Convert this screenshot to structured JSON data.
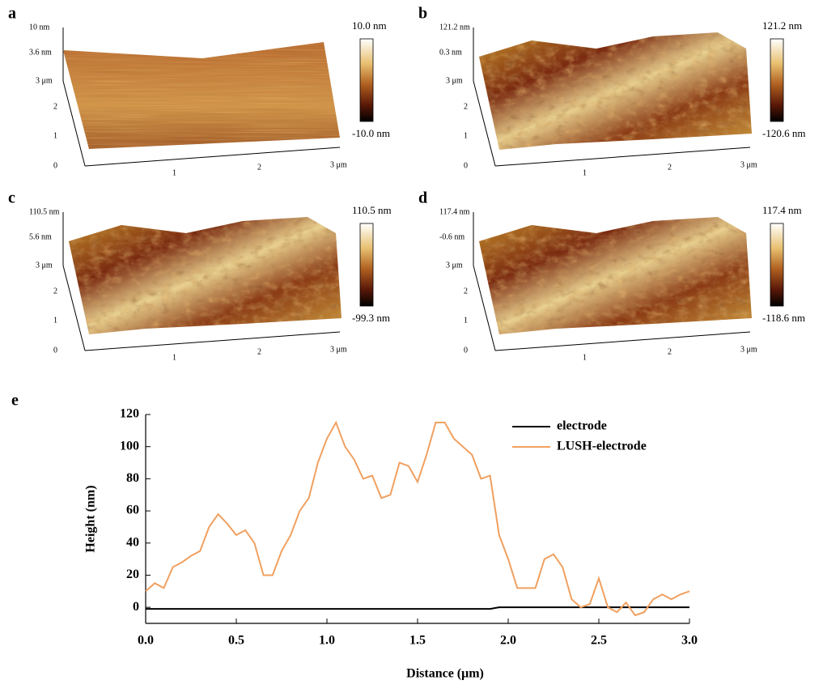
{
  "panels": [
    {
      "label": "a",
      "z_top": "10 nm",
      "z_mid": "3.6 nm",
      "y_labels": [
        "3 μm",
        "2",
        "1",
        "0"
      ],
      "x_labels": [
        "1",
        "2",
        "3 μm"
      ],
      "bar_top": "10.0 nm",
      "bar_bottom": "-10.0 nm"
    },
    {
      "label": "b",
      "z_top": "121.2 nm",
      "z_mid": "0.3 nm",
      "y_labels": [
        "3 μm",
        "2",
        "1",
        "0"
      ],
      "x_labels": [
        "1",
        "2",
        "3 μm"
      ],
      "bar_top": "121.2 nm",
      "bar_bottom": "-120.6 nm"
    },
    {
      "label": "c",
      "z_top": "110.5 nm",
      "z_mid": "5.6 nm",
      "y_labels": [
        "3 μm",
        "2",
        "1",
        "0"
      ],
      "x_labels": [
        "1",
        "2",
        "3 μm"
      ],
      "bar_top": "110.5 nm",
      "bar_bottom": "-99.3 nm"
    },
    {
      "label": "d",
      "z_top": "117.4 nm",
      "z_mid": "-0.6 nm",
      "y_labels": [
        "3 μm",
        "2",
        "1",
        "0"
      ],
      "x_labels": [
        "1",
        "2",
        "3 μm"
      ],
      "bar_top": "117.4 nm",
      "bar_bottom": "-118.6 nm"
    }
  ],
  "chart_data": {
    "type": "line",
    "label": "e",
    "x_label": "Distance (μm)",
    "y_label": "Height (nm)",
    "x": [
      0,
      0.05,
      0.1,
      0.15,
      0.2,
      0.25,
      0.3,
      0.35,
      0.4,
      0.45,
      0.5,
      0.55,
      0.6,
      0.65,
      0.7,
      0.75,
      0.8,
      0.85,
      0.9,
      0.95,
      1.0,
      1.05,
      1.1,
      1.15,
      1.2,
      1.25,
      1.3,
      1.35,
      1.4,
      1.45,
      1.5,
      1.55,
      1.6,
      1.65,
      1.7,
      1.75,
      1.8,
      1.85,
      1.9,
      1.95,
      2.0,
      2.05,
      2.1,
      2.15,
      2.2,
      2.25,
      2.3,
      2.35,
      2.4,
      2.45,
      2.5,
      2.55,
      2.6,
      2.65,
      2.7,
      2.75,
      2.8,
      2.85,
      2.9,
      2.95,
      3.0
    ],
    "series": [
      {
        "name": "electrode",
        "color": "#000000",
        "values": [
          -1,
          -1,
          -1,
          -1,
          -1,
          -1,
          -1,
          -1,
          -1,
          -1,
          -1,
          -1,
          -1,
          -1,
          -1,
          -1,
          -1,
          -1,
          -1,
          -1,
          -1,
          -1,
          -1,
          -1,
          -1,
          -1,
          -1,
          -1,
          -1,
          -1,
          -1,
          -1,
          -1,
          -1,
          -1,
          -1,
          -1,
          -1,
          -1,
          0,
          0,
          0,
          0,
          0,
          0,
          0,
          0,
          0,
          0,
          0,
          0,
          0,
          0,
          0,
          0,
          0,
          0,
          0,
          0,
          0,
          0
        ]
      },
      {
        "name": "LUSH-electrode",
        "color": "#f0a060",
        "values": [
          10,
          15,
          12,
          25,
          28,
          32,
          35,
          50,
          58,
          52,
          45,
          48,
          40,
          20,
          20,
          35,
          45,
          60,
          68,
          90,
          105,
          115,
          100,
          92,
          80,
          82,
          68,
          70,
          90,
          88,
          78,
          95,
          115,
          115,
          105,
          100,
          95,
          80,
          82,
          45,
          30,
          12,
          12,
          12,
          30,
          33,
          25,
          5,
          0,
          2,
          18,
          0,
          -3,
          3,
          -5,
          -3,
          5,
          8,
          5,
          8,
          10
        ]
      }
    ],
    "xlim": [
      0,
      3
    ],
    "ylim": [
      -10,
      120
    ],
    "xticks": [
      {
        "value": 0,
        "label": "0.0"
      },
      0.5,
      {
        "value": 1,
        "label": "1.0"
      },
      1.5,
      {
        "value": 2,
        "label": "2.0"
      },
      2.5,
      {
        "value": 3,
        "label": "3.0"
      }
    ],
    "yticks": [
      0,
      20,
      40,
      60,
      80,
      100,
      120
    ],
    "legend": "upper right"
  }
}
